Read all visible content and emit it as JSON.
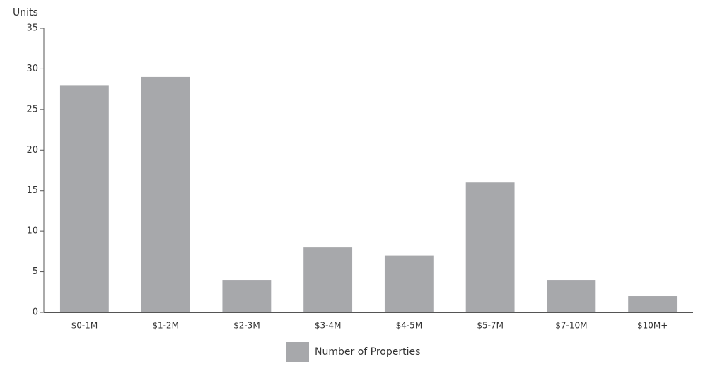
{
  "chart_data": {
    "type": "bar",
    "y_axis_label": "Units",
    "categories": [
      "$0-1M",
      "$1-2M",
      "$2-3M",
      "$3-4M",
      "$4-5M",
      "$5-7M",
      "$7-10M",
      "$10M+"
    ],
    "series": [
      {
        "name": "Number of Properties",
        "color": "#a7a8ab",
        "values": [
          28,
          29,
          4,
          8,
          7,
          16,
          4,
          2
        ]
      }
    ],
    "ylim": [
      0,
      35
    ],
    "yticks": [
      0,
      5,
      10,
      15,
      20,
      25,
      30,
      35
    ],
    "grid": false,
    "legend": "bottom"
  }
}
